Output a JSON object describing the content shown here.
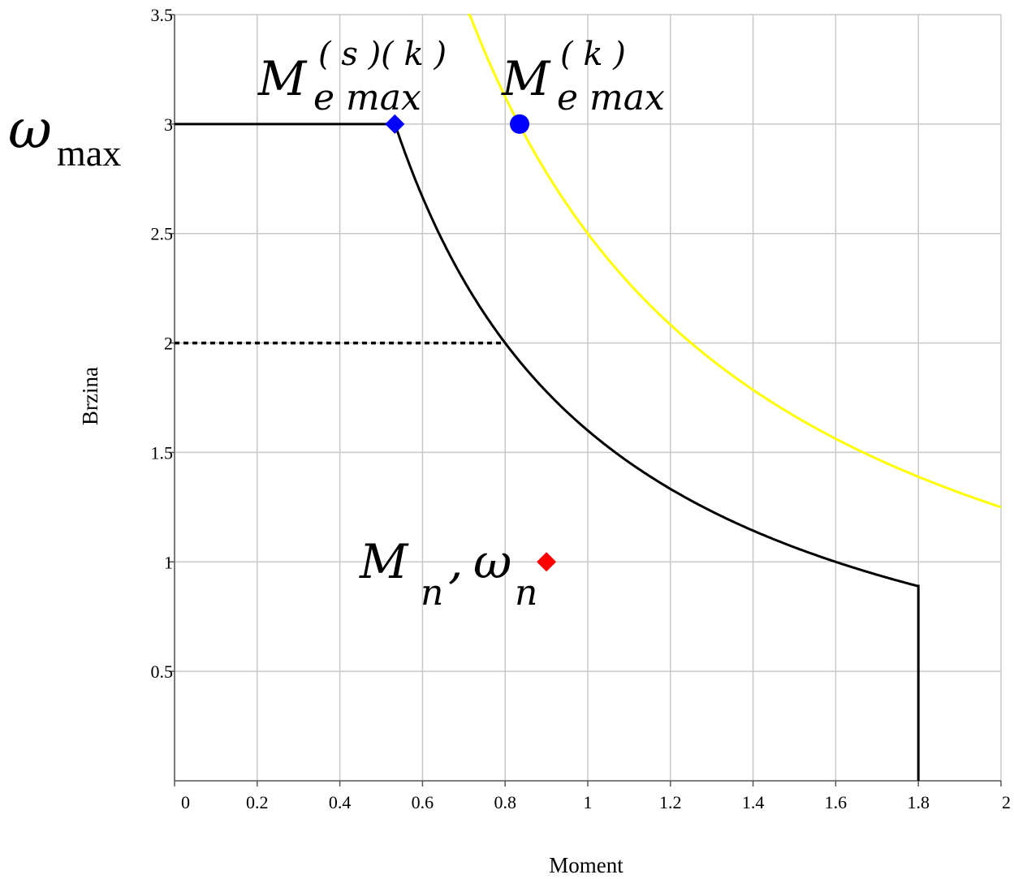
{
  "chart_data": {
    "type": "line",
    "xlabel": "Moment",
    "ylabel": "Brzina",
    "xlim": [
      0,
      2
    ],
    "ylim": [
      0,
      3.5
    ],
    "grid": true,
    "x_ticks": [
      "0",
      "0.2",
      "0.4",
      "0.6",
      "0.8",
      "1",
      "1.2",
      "1.4",
      "1.6",
      "1.8",
      "2"
    ],
    "y_ticks": [
      "0.5",
      "1",
      "1.5",
      "2",
      "2.5",
      "3",
      "3.5"
    ],
    "series": [
      {
        "color": "#000000",
        "style": "solid",
        "x": [
          0,
          0.533,
          0.55,
          0.6,
          0.65,
          0.7,
          0.75,
          0.8,
          0.9,
          1.0,
          1.1,
          1.2,
          1.3,
          1.4,
          1.5,
          1.6,
          1.7,
          1.8,
          1.8
        ],
        "y": [
          3,
          3,
          2.9,
          2.67,
          2.46,
          2.29,
          2.13,
          2.0,
          1.78,
          1.6,
          1.45,
          1.33,
          1.23,
          1.14,
          1.07,
          1.0,
          0.94,
          0.89,
          0
        ]
      },
      {
        "color": "#ffff00",
        "style": "solid",
        "x": [
          0.71,
          0.75,
          0.8,
          0.84,
          0.9,
          1.0,
          1.1,
          1.2,
          1.3,
          1.4,
          1.5,
          1.6,
          1.7,
          1.8,
          1.9,
          2.0
        ],
        "y": [
          3.52,
          3.33,
          3.13,
          2.98,
          2.78,
          2.5,
          2.27,
          2.08,
          1.92,
          1.79,
          1.67,
          1.56,
          1.47,
          1.39,
          1.32,
          1.25
        ]
      },
      {
        "color": "#000000",
        "style": "dotted",
        "x": [
          0,
          0.8
        ],
        "y": [
          2,
          2
        ]
      }
    ],
    "points": [
      {
        "x": 0.533,
        "y": 3,
        "marker": "diamond",
        "color": "#0000ff"
      },
      {
        "x": 0.835,
        "y": 3,
        "marker": "circle",
        "color": "#0000ff"
      },
      {
        "x": 0.9,
        "y": 1,
        "marker": "diamond",
        "color": "#ff0000"
      }
    ],
    "annotations": {
      "omega_max": {
        "base": "ω",
        "sub": "max"
      },
      "ms": {
        "base": "M",
        "sub": "e max",
        "sup": "( s )( k )"
      },
      "mk": {
        "base": "M",
        "sub": "e max",
        "sup": "( k )"
      },
      "mn": {
        "m": "M",
        "m_sub": "n",
        "comma": ",",
        "w": "ω",
        "w_sub": "n"
      }
    }
  }
}
